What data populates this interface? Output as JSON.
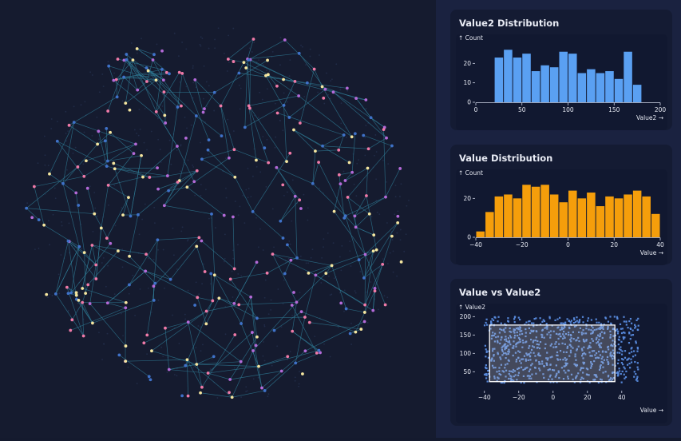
{
  "colors": {
    "background": "#151b2f",
    "edge": "#2f7c96",
    "node_pink": "#f07aa8",
    "node_yellow": "#f5e6a0",
    "node_purple": "#b46ad8",
    "node_blue": "#3f72c9",
    "bar_blue": "#5aa0f2",
    "bar_orange": "#f59e0b",
    "scatter_point": "#5a8ce0"
  },
  "chart_data": [
    {
      "type": "scatter",
      "title": "",
      "description_of_marks": "network",
      "nodes": 320,
      "node_colors": [
        "pink",
        "yellow",
        "purple",
        "blue"
      ]
    },
    {
      "type": "bar",
      "title": "Value2 Distribution",
      "ylabel": "↑ Count",
      "xlabel": "Value2 →",
      "bin_start": 20,
      "bin_width": 10,
      "values": [
        23,
        27,
        23,
        25,
        16,
        19,
        18,
        26,
        25,
        15,
        17,
        15,
        16,
        12,
        26,
        9
      ],
      "xlim": [
        0,
        200
      ],
      "x_ticks": [
        "0",
        "50",
        "100",
        "150",
        "200"
      ],
      "ylim": [
        0,
        30
      ],
      "y_ticks": [
        "0",
        "10",
        "20"
      ]
    },
    {
      "type": "bar",
      "title": "Value Distribution",
      "ylabel": "↑ Count",
      "xlabel": "Value →",
      "bin_start": -40,
      "bin_width": 4,
      "values": [
        3,
        13,
        21,
        22,
        20,
        27,
        26,
        27,
        22,
        18,
        24,
        20,
        23,
        16,
        21,
        20,
        22,
        24,
        21,
        12
      ],
      "xlim": [
        -40,
        40
      ],
      "x_ticks": [
        "−40",
        "−20",
        "0",
        "20",
        "40"
      ],
      "ylim": [
        0,
        30
      ],
      "y_ticks": [
        "0",
        "20"
      ]
    },
    {
      "type": "scatter",
      "title": "Value vs Value2",
      "ylabel": "↑ Value2",
      "xlabel": "Value →",
      "xlim": [
        -45,
        48
      ],
      "x_ticks": [
        "−40",
        "−20",
        "0",
        "20",
        "40"
      ],
      "ylim": [
        5,
        205
      ],
      "y_ticks": [
        "50",
        "100",
        "150",
        "200"
      ],
      "brush": {
        "x": [
          -37,
          36
        ],
        "y": [
          23,
          177
        ]
      },
      "point_count": 820,
      "x_range": [
        -40,
        50
      ],
      "y_range": [
        20,
        200
      ]
    }
  ]
}
